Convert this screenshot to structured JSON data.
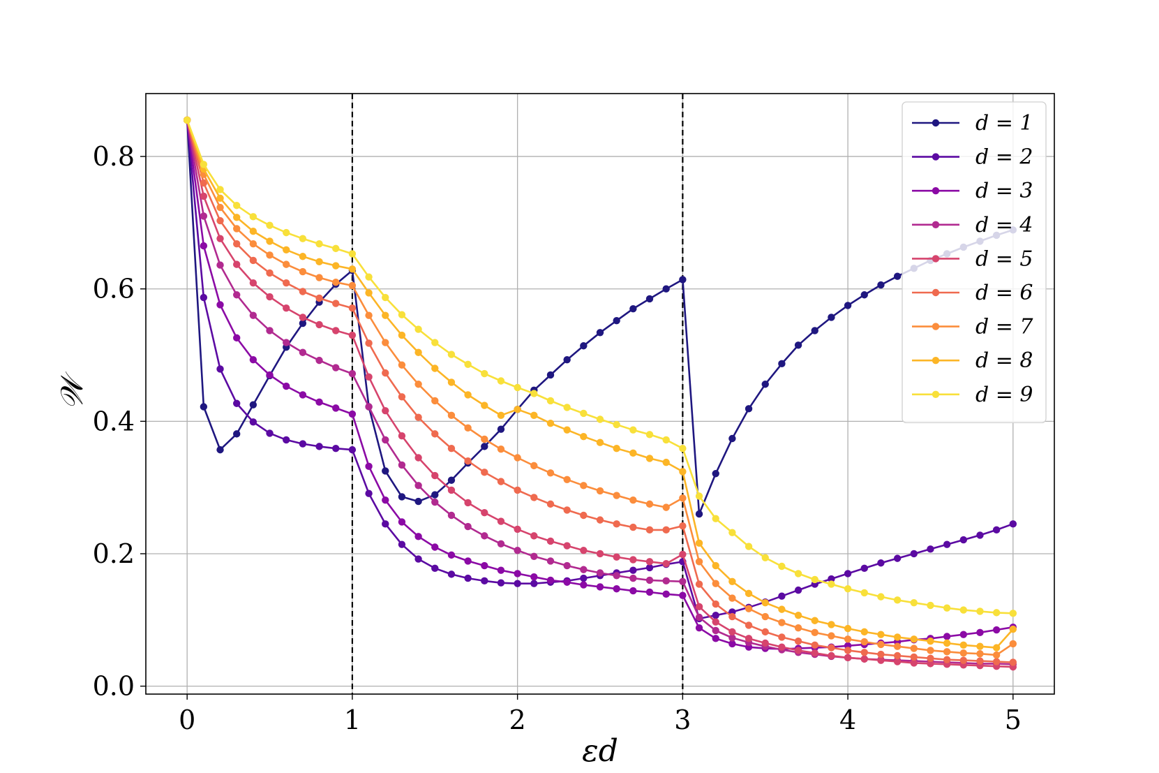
{
  "chart_data": {
    "type": "line",
    "xlabel": "εd",
    "ylabel": "𝒲",
    "xlim": [
      -0.25,
      5.25
    ],
    "ylim": [
      -0.012,
      0.895
    ],
    "xticks": [
      0,
      1,
      2,
      3,
      4,
      5
    ],
    "xtick_labels": [
      "0",
      "1",
      "2",
      "3",
      "4",
      "5"
    ],
    "yticks": [
      0.0,
      0.2,
      0.4,
      0.6,
      0.8
    ],
    "ytick_labels": [
      "0.0",
      "0.2",
      "0.4",
      "0.6",
      "0.8"
    ],
    "grid": true,
    "legend_position": "top-right",
    "vlines": [
      1,
      3
    ],
    "x": [
      0,
      0.1,
      0.2,
      0.3,
      0.4,
      0.5,
      0.6,
      0.7,
      0.8,
      0.9,
      1.0,
      1.1,
      1.2,
      1.3,
      1.4,
      1.5,
      1.6,
      1.7,
      1.8,
      1.9,
      2.0,
      2.1,
      2.2,
      2.3,
      2.4,
      2.5,
      2.6,
      2.7,
      2.8,
      2.9,
      3.0,
      3.1,
      3.2,
      3.3,
      3.4,
      3.5,
      3.6,
      3.7,
      3.8,
      3.9,
      4.0,
      4.1,
      4.2,
      4.3,
      4.4,
      4.5,
      4.6,
      4.7,
      4.8,
      4.9,
      5.0
    ],
    "series": [
      {
        "name": "d = 1",
        "color": "#1f1780",
        "values": [
          0.855,
          0.422,
          0.357,
          0.381,
          0.425,
          0.469,
          0.512,
          0.548,
          0.58,
          0.607,
          0.628,
          0.422,
          0.325,
          0.286,
          0.279,
          0.289,
          0.311,
          0.337,
          0.362,
          0.388,
          0.418,
          0.447,
          0.47,
          0.493,
          0.514,
          0.534,
          0.552,
          0.57,
          0.585,
          0.6,
          0.614,
          0.26,
          0.321,
          0.374,
          0.419,
          0.456,
          0.487,
          0.515,
          0.537,
          0.557,
          0.575,
          0.591,
          0.606,
          0.619,
          0.631,
          0.643,
          0.653,
          0.663,
          0.672,
          0.681,
          0.689
        ]
      },
      {
        "name": "d = 2",
        "color": "#5b0aa2",
        "values": [
          0.855,
          0.587,
          0.479,
          0.427,
          0.399,
          0.382,
          0.372,
          0.366,
          0.362,
          0.359,
          0.357,
          0.291,
          0.245,
          0.214,
          0.192,
          0.178,
          0.169,
          0.163,
          0.159,
          0.156,
          0.155,
          0.155,
          0.157,
          0.159,
          0.163,
          0.167,
          0.171,
          0.175,
          0.179,
          0.184,
          0.188,
          0.102,
          0.107,
          0.112,
          0.119,
          0.127,
          0.136,
          0.145,
          0.154,
          0.162,
          0.17,
          0.178,
          0.186,
          0.193,
          0.2,
          0.207,
          0.214,
          0.221,
          0.228,
          0.236,
          0.245
        ]
      },
      {
        "name": "d = 3",
        "color": "#8b0aa5",
        "values": [
          0.855,
          0.665,
          0.576,
          0.526,
          0.493,
          0.47,
          0.453,
          0.44,
          0.429,
          0.42,
          0.411,
          0.332,
          0.281,
          0.248,
          0.226,
          0.21,
          0.198,
          0.189,
          0.182,
          0.175,
          0.17,
          0.165,
          0.16,
          0.157,
          0.153,
          0.15,
          0.147,
          0.144,
          0.142,
          0.139,
          0.137,
          0.088,
          0.072,
          0.064,
          0.059,
          0.057,
          0.056,
          0.057,
          0.058,
          0.059,
          0.061,
          0.063,
          0.065,
          0.067,
          0.07,
          0.072,
          0.075,
          0.078,
          0.081,
          0.085,
          0.089
        ]
      },
      {
        "name": "d = 4",
        "color": "#b12a90",
        "values": [
          0.855,
          0.71,
          0.636,
          0.591,
          0.56,
          0.537,
          0.519,
          0.504,
          0.492,
          0.481,
          0.472,
          0.422,
          0.372,
          0.334,
          0.303,
          0.278,
          0.258,
          0.241,
          0.227,
          0.215,
          0.205,
          0.196,
          0.189,
          0.182,
          0.176,
          0.171,
          0.167,
          0.163,
          0.16,
          0.159,
          0.158,
          0.104,
          0.084,
          0.073,
          0.066,
          0.06,
          0.055,
          0.051,
          0.048,
          0.045,
          0.043,
          0.041,
          0.04,
          0.039,
          0.038,
          0.037,
          0.036,
          0.035,
          0.034,
          0.034,
          0.033
        ]
      },
      {
        "name": "d = 5",
        "color": "#d6446d",
        "values": [
          0.855,
          0.74,
          0.676,
          0.637,
          0.609,
          0.588,
          0.571,
          0.557,
          0.546,
          0.537,
          0.53,
          0.467,
          0.416,
          0.378,
          0.345,
          0.318,
          0.296,
          0.277,
          0.262,
          0.249,
          0.237,
          0.227,
          0.219,
          0.212,
          0.205,
          0.2,
          0.195,
          0.191,
          0.188,
          0.185,
          0.199,
          0.12,
          0.097,
          0.082,
          0.072,
          0.065,
          0.059,
          0.054,
          0.05,
          0.046,
          0.043,
          0.041,
          0.039,
          0.037,
          0.035,
          0.034,
          0.033,
          0.032,
          0.031,
          0.03,
          0.029
        ]
      },
      {
        "name": "d = 6",
        "color": "#ef6a4f",
        "values": [
          0.855,
          0.76,
          0.703,
          0.668,
          0.643,
          0.624,
          0.609,
          0.596,
          0.586,
          0.578,
          0.571,
          0.518,
          0.473,
          0.437,
          0.406,
          0.381,
          0.359,
          0.34,
          0.323,
          0.309,
          0.296,
          0.285,
          0.275,
          0.266,
          0.258,
          0.251,
          0.245,
          0.24,
          0.236,
          0.236,
          0.242,
          0.154,
          0.124,
          0.105,
          0.092,
          0.082,
          0.074,
          0.068,
          0.062,
          0.058,
          0.054,
          0.051,
          0.048,
          0.046,
          0.044,
          0.042,
          0.04,
          0.039,
          0.038,
          0.037,
          0.036
        ]
      },
      {
        "name": "d = 7",
        "color": "#fb8d3c",
        "values": [
          0.855,
          0.773,
          0.723,
          0.691,
          0.668,
          0.651,
          0.637,
          0.626,
          0.617,
          0.61,
          0.605,
          0.56,
          0.519,
          0.485,
          0.456,
          0.431,
          0.409,
          0.39,
          0.373,
          0.358,
          0.345,
          0.333,
          0.322,
          0.312,
          0.303,
          0.295,
          0.288,
          0.281,
          0.275,
          0.27,
          0.284,
          0.188,
          0.155,
          0.133,
          0.117,
          0.105,
          0.096,
          0.088,
          0.081,
          0.076,
          0.071,
          0.067,
          0.063,
          0.06,
          0.057,
          0.054,
          0.052,
          0.05,
          0.049,
          0.047,
          0.064
        ]
      },
      {
        "name": "d = 8",
        "color": "#fcb526",
        "values": [
          0.855,
          0.781,
          0.737,
          0.708,
          0.687,
          0.672,
          0.659,
          0.649,
          0.641,
          0.635,
          0.63,
          0.594,
          0.56,
          0.53,
          0.504,
          0.48,
          0.459,
          0.44,
          0.424,
          0.409,
          0.418,
          0.409,
          0.397,
          0.387,
          0.377,
          0.368,
          0.359,
          0.352,
          0.344,
          0.338,
          0.324,
          0.216,
          0.182,
          0.158,
          0.14,
          0.126,
          0.116,
          0.107,
          0.099,
          0.093,
          0.087,
          0.082,
          0.078,
          0.074,
          0.071,
          0.068,
          0.065,
          0.062,
          0.06,
          0.058,
          0.086
        ]
      },
      {
        "name": "d = 9",
        "color": "#f8e03a",
        "values": [
          0.855,
          0.788,
          0.75,
          0.726,
          0.709,
          0.696,
          0.685,
          0.676,
          0.668,
          0.661,
          0.653,
          0.618,
          0.587,
          0.561,
          0.539,
          0.519,
          0.501,
          0.486,
          0.472,
          0.461,
          0.451,
          0.442,
          0.431,
          0.421,
          0.412,
          0.403,
          0.395,
          0.387,
          0.38,
          0.372,
          0.359,
          0.287,
          0.253,
          0.232,
          0.211,
          0.194,
          0.181,
          0.17,
          0.161,
          0.154,
          0.147,
          0.141,
          0.135,
          0.13,
          0.126,
          0.122,
          0.118,
          0.115,
          0.113,
          0.111,
          0.11
        ]
      }
    ]
  }
}
